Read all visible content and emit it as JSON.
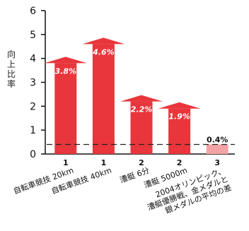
{
  "chart_data": {
    "type": "bar",
    "ylabel": "向上比率",
    "ylim": [
      0,
      6
    ],
    "yticks": [
      0,
      1,
      2,
      3,
      4,
      5,
      6
    ],
    "reference_line": 0.4,
    "bars": [
      {
        "value": 3.8,
        "label": "3.8%",
        "group": "1",
        "category": [
          "自転車競技 20km"
        ],
        "color": "#e8363c",
        "arrow": true
      },
      {
        "value": 4.6,
        "label": "4.6%",
        "group": "1",
        "category": [
          "自転車競技 40km"
        ],
        "color": "#e8363c",
        "arrow": true
      },
      {
        "value": 2.2,
        "label": "2.2%",
        "group": "2",
        "category": [
          "漕艇 6分"
        ],
        "color": "#e8363c",
        "arrow": true
      },
      {
        "value": 1.9,
        "label": "1.9%",
        "group": "2",
        "category": [
          "漕艇 5000m"
        ],
        "color": "#e8363c",
        "arrow": true
      },
      {
        "value": 0.4,
        "label": "0.4%",
        "group": "3",
        "category": [
          "2004オリンピック、",
          "漕艇優勝戦、金メダルと",
          "銀メダルの平均の差"
        ],
        "color": "#f4a3a6",
        "arrow": false
      }
    ]
  }
}
